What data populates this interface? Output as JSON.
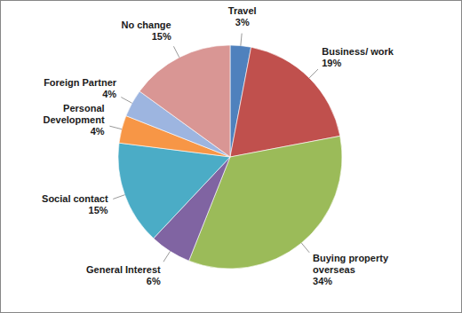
{
  "chart_data": {
    "type": "pie",
    "categories": [
      "Travel",
      "Business/ work",
      "Buying property overseas",
      "General Interest",
      "Social contact",
      "Personal Development",
      "Foreign Partner",
      "No change"
    ],
    "values": [
      3,
      19,
      34,
      6,
      15,
      4,
      4,
      15
    ],
    "value_labels": [
      "3%",
      "19%",
      "34%",
      "6%",
      "15%",
      "4%",
      "4%",
      "15%"
    ],
    "colors": [
      "#4F81BD",
      "#C0504D",
      "#9BBB59",
      "#8064A2",
      "#4BACC6",
      "#F79646",
      "#9DB5E0",
      "#D99694"
    ],
    "data_labels": true
  }
}
